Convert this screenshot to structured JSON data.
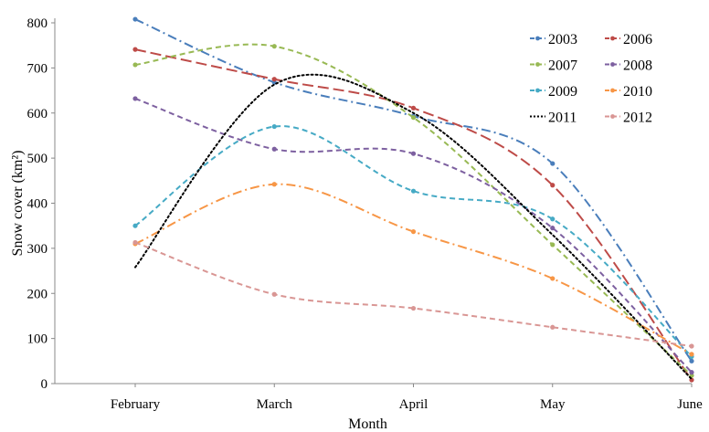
{
  "chart_data": {
    "type": "line",
    "title": "",
    "xlabel": "Month",
    "ylabel": "Snow cover (km²)",
    "categories": [
      "February",
      "March",
      "April",
      "May",
      "June"
    ],
    "ylim": [
      0,
      800
    ],
    "yticks": [
      0,
      100,
      200,
      300,
      400,
      500,
      600,
      700,
      800
    ],
    "grid": false,
    "legend_position": "top-right",
    "series": [
      {
        "name": "2003",
        "values": [
          808,
          668,
          593,
          488,
          50
        ],
        "color": "#4a7ebb",
        "dash": "dash-dot"
      },
      {
        "name": "2006",
        "values": [
          741,
          675,
          611,
          440,
          8
        ],
        "color": "#be4b48",
        "dash": "long-dash"
      },
      {
        "name": "2007",
        "values": [
          707,
          748,
          590,
          308,
          18
        ],
        "color": "#98b954",
        "dash": "dash"
      },
      {
        "name": "2008",
        "values": [
          632,
          520,
          510,
          345,
          25
        ],
        "color": "#7d60a0",
        "dash": "dash"
      },
      {
        "name": "2009",
        "values": [
          350,
          570,
          427,
          365,
          60
        ],
        "color": "#46aac5",
        "dash": "dash"
      },
      {
        "name": "2010",
        "values": [
          310,
          442,
          337,
          233,
          65
        ],
        "color": "#f79646",
        "dash": "dash-dot"
      },
      {
        "name": "2011",
        "values": [
          258,
          663,
          600,
          330,
          10
        ],
        "color": "#000000",
        "dash": "dot"
      },
      {
        "name": "2012",
        "values": [
          313,
          198,
          167,
          125,
          83
        ],
        "color": "#d99694",
        "dash": "dash"
      }
    ]
  }
}
